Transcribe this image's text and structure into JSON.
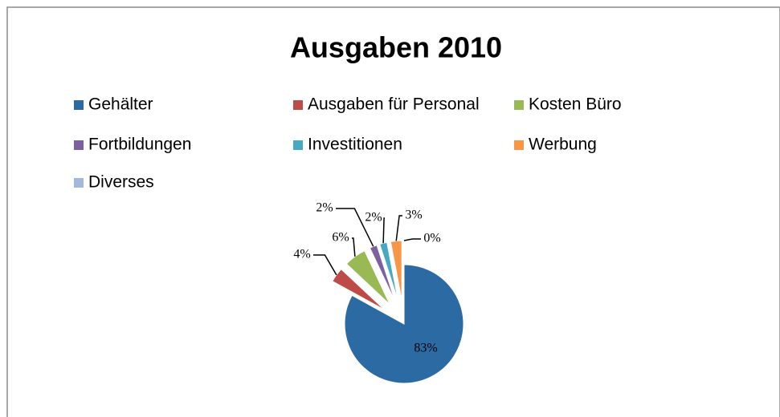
{
  "chart_data": {
    "type": "pie",
    "title": "Ausgaben 2010",
    "categories": [
      "Gehälter",
      "Ausgaben für Personal",
      "Kosten Büro",
      "Fortbildungen",
      "Investitionen",
      "Werbung",
      "Diverses"
    ],
    "values": [
      83,
      4,
      6,
      2,
      2,
      3,
      0
    ],
    "value_labels": [
      "83%",
      "4%",
      "6%",
      "2%",
      "2%",
      "3%",
      "0%"
    ],
    "colors": [
      "#2c6aa3",
      "#be4b48",
      "#98b954",
      "#7d60a0",
      "#46aac5",
      "#f79646",
      "#a5b8dc"
    ],
    "legend": "top"
  }
}
